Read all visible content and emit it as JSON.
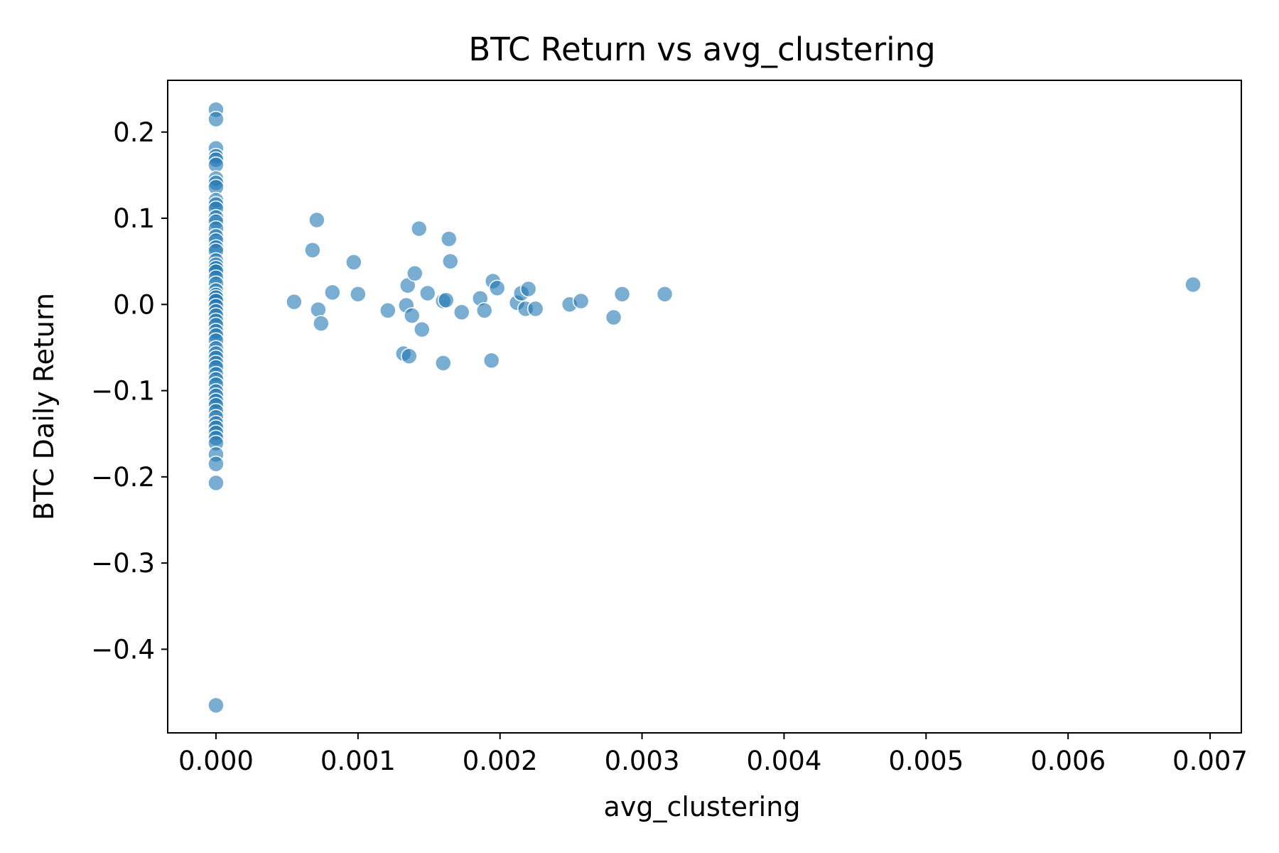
{
  "chart_data": {
    "type": "scatter",
    "title": "BTC Return vs avg_clustering",
    "xlabel": "avg_clustering",
    "ylabel": "BTC Daily Return",
    "xlim": [
      -0.00034,
      0.00722
    ],
    "ylim": [
      -0.497,
      0.26
    ],
    "xticks": [
      0.0,
      0.001,
      0.002,
      0.003,
      0.004,
      0.005,
      0.006,
      0.007
    ],
    "xtick_labels": [
      "0.000",
      "0.001",
      "0.002",
      "0.003",
      "0.004",
      "0.005",
      "0.006",
      "0.007"
    ],
    "yticks": [
      0.2,
      0.1,
      0.0,
      -0.1,
      -0.2,
      -0.3,
      -0.4
    ],
    "ytick_labels": [
      "0.2",
      "0.1",
      "0.0",
      "−0.1",
      "−0.2",
      "−0.3",
      "−0.4"
    ],
    "grid": false,
    "color": "#1f77b4",
    "alpha": 0.6,
    "points": [
      [
        0,
        0.226
      ],
      [
        0,
        0.215
      ],
      [
        0,
        0.181
      ],
      [
        0,
        0.172
      ],
      [
        0,
        0.168
      ],
      [
        0,
        0.162
      ],
      [
        0,
        0.146
      ],
      [
        0,
        0.141
      ],
      [
        0,
        0.136
      ],
      [
        0,
        0.121
      ],
      [
        0,
        0.116
      ],
      [
        0,
        0.111
      ],
      [
        0,
        0.101
      ],
      [
        0,
        0.096
      ],
      [
        0,
        0.088
      ],
      [
        0,
        0.079
      ],
      [
        0,
        0.074
      ],
      [
        0,
        0.066
      ],
      [
        0,
        0.062
      ],
      [
        0,
        0.051
      ],
      [
        0,
        0.046
      ],
      [
        0,
        0.042
      ],
      [
        0,
        0.038
      ],
      [
        0,
        0.031
      ],
      [
        0,
        0.024
      ],
      [
        0,
        0.016
      ],
      [
        0,
        0.011
      ],
      [
        0,
        0.008
      ],
      [
        0,
        0.004
      ],
      [
        0,
        -0.002
      ],
      [
        0,
        -0.008
      ],
      [
        0,
        -0.013
      ],
      [
        0,
        -0.019
      ],
      [
        0,
        -0.024
      ],
      [
        0,
        -0.031
      ],
      [
        0,
        -0.036
      ],
      [
        0,
        -0.042
      ],
      [
        0,
        -0.051
      ],
      [
        0,
        -0.057
      ],
      [
        0,
        -0.062
      ],
      [
        0,
        -0.068
      ],
      [
        0,
        -0.073
      ],
      [
        0,
        -0.081
      ],
      [
        0,
        -0.087
      ],
      [
        0,
        -0.093
      ],
      [
        0,
        -0.101
      ],
      [
        0,
        -0.106
      ],
      [
        0,
        -0.112
      ],
      [
        0,
        -0.117
      ],
      [
        0,
        -0.124
      ],
      [
        0,
        -0.131
      ],
      [
        0,
        -0.138
      ],
      [
        0,
        -0.143
      ],
      [
        0,
        -0.149
      ],
      [
        0,
        -0.155
      ],
      [
        0,
        -0.161
      ],
      [
        0,
        -0.174
      ],
      [
        0,
        -0.185
      ],
      [
        0,
        -0.207
      ],
      [
        0,
        -0.465
      ],
      [
        0.00055,
        0.003
      ],
      [
        0.00068,
        0.063
      ],
      [
        0.00071,
        0.098
      ],
      [
        0.00072,
        -0.006
      ],
      [
        0.00074,
        -0.022
      ],
      [
        0.00082,
        0.014
      ],
      [
        0.00097,
        0.049
      ],
      [
        0.001,
        0.012
      ],
      [
        0.00121,
        -0.007
      ],
      [
        0.00132,
        -0.057
      ],
      [
        0.00134,
        -0.001
      ],
      [
        0.00135,
        0.022
      ],
      [
        0.00136,
        -0.06
      ],
      [
        0.00138,
        -0.013
      ],
      [
        0.0014,
        0.036
      ],
      [
        0.00143,
        0.088
      ],
      [
        0.00145,
        -0.029
      ],
      [
        0.00149,
        0.013
      ],
      [
        0.0016,
        0.004
      ],
      [
        0.0016,
        -0.068
      ],
      [
        0.00162,
        0.005
      ],
      [
        0.00164,
        0.076
      ],
      [
        0.00165,
        0.05
      ],
      [
        0.00173,
        -0.009
      ],
      [
        0.00186,
        0.007
      ],
      [
        0.00189,
        -0.007
      ],
      [
        0.00194,
        -0.065
      ],
      [
        0.00195,
        0.027
      ],
      [
        0.00198,
        0.019
      ],
      [
        0.00212,
        0.002
      ],
      [
        0.00215,
        0.013
      ],
      [
        0.00218,
        -0.005
      ],
      [
        0.0022,
        0.018
      ],
      [
        0.00225,
        -0.005
      ],
      [
        0.00249,
        0.0
      ],
      [
        0.00257,
        0.004
      ],
      [
        0.0028,
        -0.015
      ],
      [
        0.00286,
        0.012
      ],
      [
        0.00316,
        0.012
      ],
      [
        0.00688,
        0.023
      ]
    ]
  }
}
